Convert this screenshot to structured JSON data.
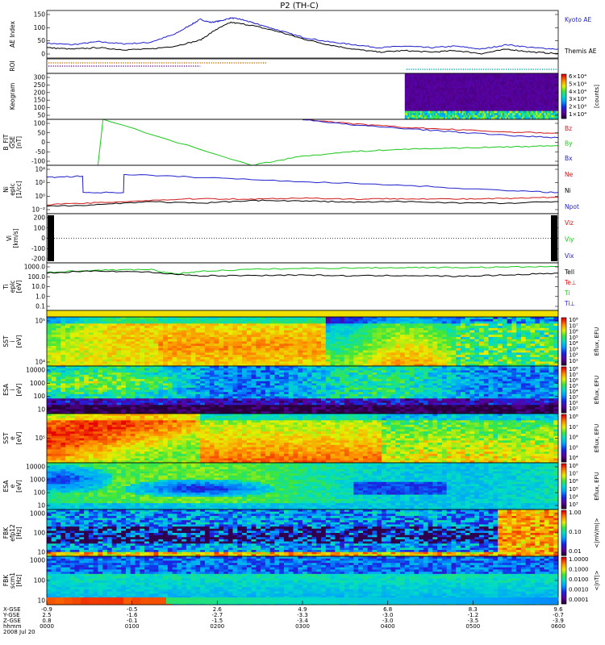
{
  "title": "P2 (TH-C)",
  "colors": {
    "black": "#000000",
    "blue": "#1f1fcc",
    "red": "#d01818",
    "green": "#18c818",
    "cyan": "#00aaaa",
    "orange": "#d07000",
    "purple": "#7020a0"
  },
  "chart_data": [
    {
      "id": "ae",
      "type": "line",
      "ylabel": [
        "AE Index"
      ],
      "yticks": [
        "150",
        "100",
        "50",
        "0"
      ],
      "legend": [
        {
          "label": "Kyoto AE",
          "color": "blue"
        },
        {
          "label": "Themis AE",
          "color": "black"
        }
      ],
      "series": [
        {
          "name": "Kyoto AE",
          "color": "blue",
          "x": [
            0,
            0.05,
            0.1,
            0.15,
            0.2,
            0.25,
            0.28,
            0.3,
            0.32,
            0.34,
            0.36,
            0.38,
            0.4,
            0.42,
            0.45,
            0.5,
            0.55,
            0.6,
            0.65,
            0.7,
            0.75,
            0.8,
            0.85,
            0.9,
            0.95,
            1.0
          ],
          "y": [
            50,
            45,
            55,
            48,
            52,
            80,
            110,
            130,
            120,
            125,
            135,
            130,
            120,
            110,
            95,
            70,
            55,
            45,
            35,
            40,
            35,
            40,
            30,
            45,
            35,
            30
          ]
        },
        {
          "name": "Themis AE",
          "color": "black",
          "x": [
            0,
            0.05,
            0.1,
            0.15,
            0.2,
            0.25,
            0.3,
            0.33,
            0.36,
            0.4,
            0.45,
            0.5,
            0.55,
            0.6,
            0.65,
            0.7,
            0.75,
            0.8,
            0.85,
            0.9,
            0.95,
            1.0
          ],
          "y": [
            35,
            30,
            35,
            28,
            30,
            40,
            60,
            95,
            120,
            110,
            90,
            65,
            45,
            30,
            20,
            25,
            20,
            25,
            15,
            30,
            20,
            15
          ]
        }
      ],
      "ylim": [
        0,
        160
      ]
    },
    {
      "id": "roi",
      "type": "markers",
      "ylabel": [
        "ROI"
      ],
      "yticks": [],
      "rows": [
        {
          "color": "orange",
          "x_range": [
            0,
            0.43
          ]
        },
        {
          "color": "purple",
          "x_range": [
            0,
            0.3
          ]
        },
        {
          "color": "cyan",
          "x_range": [
            0.7,
            1.0
          ]
        }
      ]
    },
    {
      "id": "keogram",
      "type": "heatmap",
      "ylabel": [
        "Keogram"
      ],
      "yticks": [
        "300",
        "250",
        "200",
        "150",
        "100",
        "50"
      ],
      "colorbar": {
        "labels": [
          "6×10⁴",
          "5×10⁴",
          "4×10⁴",
          "3×10⁴",
          "2×10⁴",
          "1×10⁴"
        ],
        "title": "[counts]"
      },
      "data_x_range": [
        0.7,
        1.0
      ]
    },
    {
      "id": "bfit",
      "type": "line",
      "ylabel": [
        "B_FIT",
        "GSE",
        "[nT]"
      ],
      "yticks": [
        "100",
        "50",
        "0",
        "-50",
        "-100"
      ],
      "legend": [
        {
          "label": "Bz",
          "color": "red"
        },
        {
          "label": "By",
          "color": "green"
        },
        {
          "label": "Bx",
          "color": "blue"
        }
      ],
      "series": [
        {
          "name": "Bz",
          "color": "red",
          "x": [
            0.5,
            0.6,
            0.7,
            0.8,
            0.9,
            1.0
          ],
          "y": [
            100,
            80,
            65,
            55,
            45,
            40
          ]
        },
        {
          "name": "By",
          "color": "green",
          "x": [
            0.1,
            0.11,
            0.4,
            0.5,
            0.6,
            0.7,
            0.8,
            0.9,
            1.0
          ],
          "y": [
            -100,
            100,
            -100,
            -60,
            -40,
            -30,
            -25,
            -20,
            -15
          ]
        },
        {
          "name": "Bx",
          "color": "blue",
          "x": [
            0.5,
            0.6,
            0.7,
            0.8,
            0.9,
            1.0
          ],
          "y": [
            100,
            75,
            60,
            45,
            30,
            20
          ]
        }
      ],
      "ylim": [
        -100,
        100
      ]
    },
    {
      "id": "density",
      "type": "line",
      "ylabel": [
        "Ni",
        "eplc",
        "[1/cc]"
      ],
      "yticks": [
        "10⁴",
        "10²",
        "10⁰",
        "10⁻²"
      ],
      "legend": [
        {
          "label": "Ne",
          "color": "red"
        },
        {
          "label": "Ni",
          "color": "black"
        },
        {
          "label": "Npot",
          "color": "blue"
        }
      ],
      "series": [
        {
          "name": "Npot",
          "color": "blue",
          "x": [
            0,
            0.07,
            0.071,
            0.15,
            0.151,
            0.3,
            0.5,
            0.7,
            0.9,
            1.0
          ],
          "y": [
            3,
            3.2,
            0.5,
            0.5,
            3.5,
            3.0,
            2.3,
            1.7,
            0.8,
            0.5
          ]
        },
        {
          "name": "Ne",
          "color": "red",
          "x": [
            0,
            0.1,
            0.2,
            0.3,
            0.4,
            0.5,
            0.6,
            0.7,
            0.8,
            0.9,
            1.0
          ],
          "y": [
            -1.5,
            -1.2,
            -0.8,
            -0.5,
            -0.6,
            -0.4,
            -0.6,
            -0.5,
            -0.6,
            -0.5,
            -0.3
          ]
        },
        {
          "name": "Ni",
          "color": "black",
          "x": [
            0,
            0.1,
            0.2,
            0.3,
            0.4,
            0.5,
            0.6,
            0.7,
            0.8,
            0.9,
            1.0
          ],
          "y": [
            -1.8,
            -1.5,
            -1.0,
            -1.3,
            -0.8,
            -0.9,
            -1.1,
            -1.0,
            -1.2,
            -1.3,
            -1.0
          ]
        }
      ],
      "ylim": [
        -3,
        5
      ]
    },
    {
      "id": "velocity",
      "type": "line",
      "ylabel": [
        "Vi",
        "[km/s]"
      ],
      "yticks": [
        "200",
        "100",
        "0",
        "-100",
        "-200"
      ],
      "legend": [
        {
          "label": "Viz",
          "color": "red"
        },
        {
          "label": "Viy",
          "color": "green"
        },
        {
          "label": "Vix",
          "color": "blue"
        }
      ],
      "ylim": [
        -300,
        300
      ]
    },
    {
      "id": "temperature",
      "type": "line",
      "ylabel": [
        "Ti",
        "eplc",
        "[eV]"
      ],
      "yticks": [
        "1000.0",
        "100.0",
        "10.0",
        "1.0",
        "0.1"
      ],
      "legend": [
        {
          "label": "Tell",
          "color": "black"
        },
        {
          "label": "Te⊥",
          "color": "red"
        },
        {
          "label": "Ti",
          "color": "green"
        },
        {
          "label": "Ti⊥",
          "color": "blue"
        }
      ],
      "series": [
        {
          "name": "Ti",
          "color": "green",
          "x": [
            0,
            0.1,
            0.2,
            0.25,
            0.3,
            0.4,
            0.5,
            0.6,
            0.7,
            0.8,
            0.9,
            1.0
          ],
          "y": [
            2.8,
            3.0,
            3.1,
            2.6,
            2.9,
            3.1,
            3.2,
            3.25,
            3.3,
            3.3,
            3.35,
            3.4
          ]
        },
        {
          "name": "Tell",
          "color": "black",
          "x": [
            0,
            0.1,
            0.2,
            0.3,
            0.4,
            0.5,
            0.6,
            0.7,
            0.8,
            0.9,
            1.0
          ],
          "y": [
            2.7,
            2.95,
            2.8,
            2.4,
            2.45,
            2.5,
            2.4,
            2.45,
            2.35,
            2.5,
            2.7
          ]
        }
      ],
      "ylim": [
        -1.3,
        3.8
      ]
    },
    {
      "id": "sst-ion",
      "type": "heatmap",
      "ylabel": [
        "SST",
        "i",
        "[eV]"
      ],
      "yticks": [
        "10⁵",
        "10⁴"
      ],
      "colorbar": {
        "labels": [
          "10⁸",
          "10⁷",
          "10⁶",
          "10⁵",
          "10⁴",
          "10³",
          "10²",
          "10¹"
        ],
        "title": "Eflux, EFU"
      }
    },
    {
      "id": "esa-ion",
      "type": "heatmap",
      "ylabel": [
        "ESA",
        "i",
        "[eV]"
      ],
      "yticks": [
        "10000",
        "1000",
        "100",
        "10"
      ],
      "colorbar": {
        "labels": [
          "10⁸",
          "10⁷",
          "10⁶",
          "10⁵",
          "10⁴",
          "10³",
          "10²",
          "10¹"
        ],
        "title": "Eflux, EFU"
      }
    },
    {
      "id": "sst-electron",
      "type": "heatmap",
      "ylabel": [
        "SST",
        "e",
        "[eV]"
      ],
      "yticks": [
        "10⁵"
      ],
      "colorbar": {
        "labels": [
          "10⁸",
          "10⁷",
          "10⁶",
          "10⁵",
          "10⁴"
        ],
        "title": "Eflux, EFU"
      }
    },
    {
      "id": "esa-electron",
      "type": "heatmap",
      "ylabel": [
        "ESA",
        "e",
        "[eV]"
      ],
      "yticks": [
        "10000",
        "1000",
        "100",
        "10"
      ],
      "colorbar": {
        "labels": [
          "10⁸",
          "10⁷",
          "10⁶",
          "10⁵",
          "10⁴",
          "10³"
        ],
        "title": "Eflux, EFU"
      }
    },
    {
      "id": "fbk-e",
      "type": "heatmap",
      "ylabel": [
        "FBK",
        "efp12",
        "[Hz]"
      ],
      "yticks": [
        "1000",
        "100",
        "10"
      ],
      "colorbar": {
        "labels": [
          "1.00",
          "0.10",
          "0.01"
        ],
        "title": "<|mV/m|>"
      }
    },
    {
      "id": "fbk-b",
      "type": "heatmap",
      "ylabel": [
        "FBK",
        "scm1",
        "[Hz]"
      ],
      "yticks": [
        "1000",
        "100",
        "10"
      ],
      "colorbar": {
        "labels": [
          "1.0000",
          "0.1000",
          "0.0100",
          "0.0010",
          "0.0001"
        ],
        "title": "<|nT|>"
      }
    }
  ],
  "xaxis": {
    "row_labels": [
      "X-GSE",
      "Y-GSE",
      "Z-GSE",
      "hhmm",
      "2008 Jul 20"
    ],
    "ticks": [
      {
        "values": [
          "-0.9",
          "2.5",
          "0.8",
          "0000"
        ]
      },
      {
        "values": [
          "-0.5",
          "-1.6",
          "-0.1",
          "0100"
        ]
      },
      {
        "values": [
          "2.6",
          "-2.7",
          "-1.5",
          "0200"
        ]
      },
      {
        "values": [
          "4.9",
          "-3.3",
          "-3.4",
          "0300"
        ]
      },
      {
        "values": [
          "6.8",
          "-3.0",
          "-3.0",
          "0400"
        ]
      },
      {
        "values": [
          "8.3",
          "-1.2",
          "-3.5",
          "0500"
        ]
      },
      {
        "values": [
          "9.6",
          "-0.7",
          "-3.9",
          "0600"
        ]
      }
    ]
  }
}
